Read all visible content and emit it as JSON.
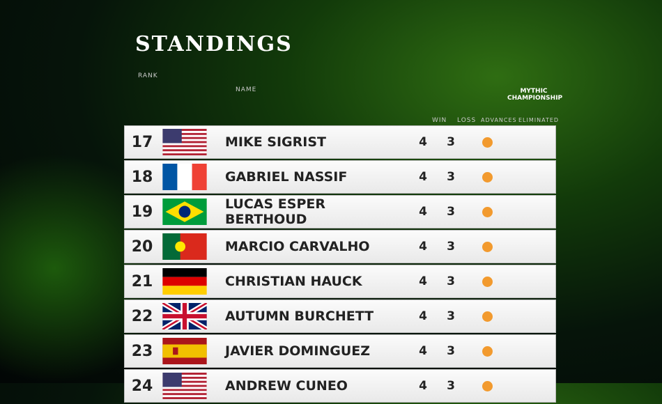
{
  "header": {
    "title": "STANDINGS",
    "logo": "MYTHIC CHAMPIONSHIP"
  },
  "table": {
    "columns": [
      "RANK",
      "NAME",
      "WIN",
      "LOSS",
      "ADVANCES",
      "ELIMINATED"
    ],
    "rows": [
      [
        17,
        "MIKE SIGRIST",
        4,
        3
      ],
      [
        18,
        "GABRIEL NASSIF",
        4,
        3
      ],
      [
        19,
        "LUCAS ESPER BERTHOUD",
        4,
        3
      ],
      [
        20,
        "MARCIO CARVALHO",
        4,
        3
      ],
      [
        21,
        "CHRISTIAN HAUCK",
        4,
        3
      ],
      [
        22,
        "AUTUMN BURCHETT",
        4,
        3
      ],
      [
        23,
        "JAVIER DOMINGUEZ",
        4,
        3
      ],
      [
        24,
        "ANDREW CUNEO",
        4,
        3
      ]
    ]
  }
}
